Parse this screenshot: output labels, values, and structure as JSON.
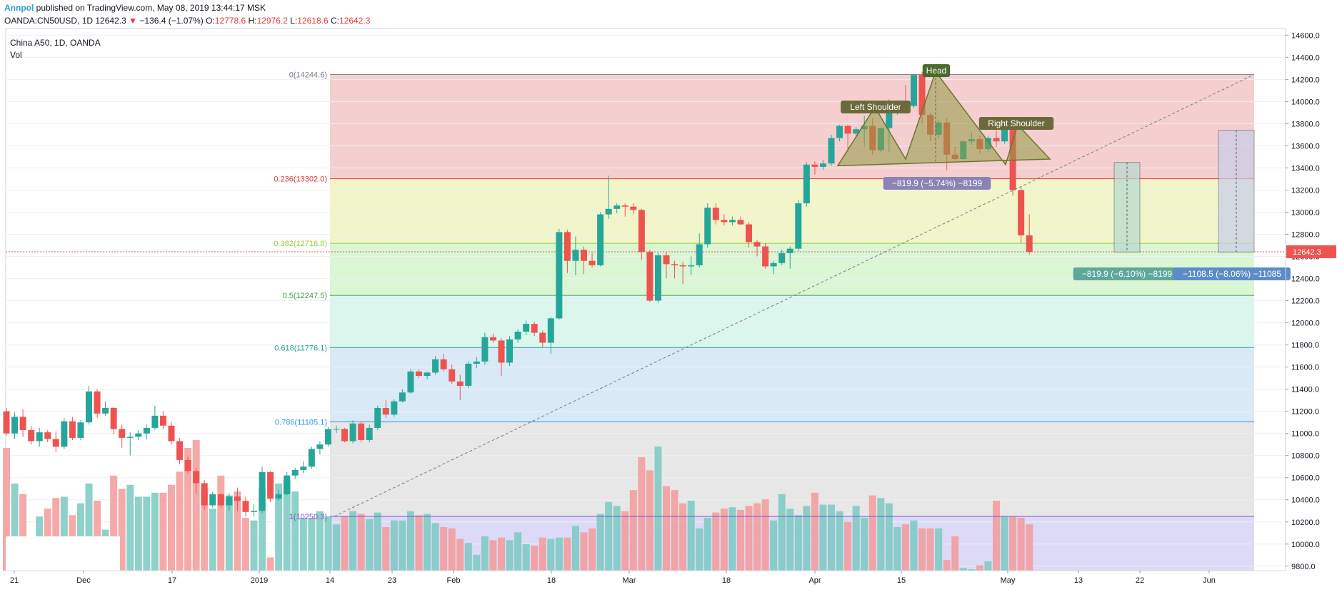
{
  "header": {
    "author": "Annpol",
    "published_text": "published on TradingView.com, May 08, 2019 13:44:17 MSK",
    "symbol": "OANDA:CN50USD, 1D",
    "last": "12642.3",
    "change_arrow": "▼",
    "change": "−136.4 (−1.07%)",
    "o_label": "O:",
    "o_value": "12778.6",
    "h_label": "H:",
    "h_value": "12976.2",
    "l_label": "L:",
    "l_value": "12618.6",
    "c_label": "C:",
    "c_value": "12642.3"
  },
  "legend": {
    "title": "China A50, 1D, OANDA",
    "volume": "Vol"
  },
  "colors": {
    "up": "#26a69a",
    "down": "#ef5350",
    "text": "#131722"
  },
  "chart_data": {
    "type": "candlestick",
    "x_tick_labels": [
      "21",
      "Dec",
      "17",
      "2019",
      "14",
      "23",
      "Feb",
      "18",
      "Mar",
      "18",
      "Apr",
      "15",
      "May",
      "13",
      "22",
      "Jun"
    ],
    "y_ticks": [
      "14600.0",
      "14400.0",
      "14200.0",
      "14000.0",
      "13800.0",
      "13600.0",
      "13400.0",
      "13200.0",
      "13000.0",
      "12800.0",
      "12600.0",
      "12400.0",
      "12200.0",
      "12000.0",
      "11800.0",
      "11600.0",
      "11400.0",
      "11200.0",
      "11000.0",
      "10800.0",
      "10600.0",
      "10400.0",
      "10200.0",
      "10000.0",
      "9800.0"
    ],
    "ylim": [
      9760,
      14660
    ],
    "last_price": "12642.3",
    "fib_levels": [
      {
        "label": "0(14244.6)",
        "ratio": 0,
        "price": 14244.6,
        "color": "#787b86",
        "fill": "#f3c7c7"
      },
      {
        "label": "0.236(13302.0)",
        "ratio": 0.236,
        "price": 13302.0,
        "color": "#e53935",
        "fill": "#eef3c0"
      },
      {
        "label": "0.382(12718.8)",
        "ratio": 0.382,
        "price": 12718.8,
        "color": "#9acd32",
        "fill": "#d4f4cc"
      },
      {
        "label": "0.5(12247.5)",
        "ratio": 0.5,
        "price": 12247.5,
        "color": "#43a047",
        "fill": "#d3f4ea"
      },
      {
        "label": "0.618(11776.1)",
        "ratio": 0.618,
        "price": 11776.1,
        "color": "#26a69a",
        "fill": "#d2e6f4"
      },
      {
        "label": "0.786(11105.1)",
        "ratio": 0.786,
        "price": 11105.1,
        "color": "#2196f3",
        "fill": "#e3e3e3"
      },
      {
        "label": "1(10250.3)",
        "ratio": 1,
        "price": 10250.3,
        "color": "#7e57c2",
        "fill": "#d6d4f4"
      }
    ],
    "pattern_labels": {
      "head": "Head",
      "left_shoulder": "Left Shoulder",
      "right_shoulder": "Right Shoulder"
    },
    "measure_labels": {
      "neck_drop": "−819.9 (−5.74%) −8199",
      "target_1": "−819.9 (−6.10%) −8199",
      "target_2": "−1108.5 (−8.06%) −11085"
    },
    "candles": [
      {
        "o": 11200,
        "h": 11230,
        "l": 10980,
        "c": 11000
      },
      {
        "o": 11000,
        "h": 11190,
        "l": 10950,
        "c": 11150
      },
      {
        "o": 11150,
        "h": 11220,
        "l": 10970,
        "c": 11030
      },
      {
        "o": 11030,
        "h": 11070,
        "l": 10900,
        "c": 10930
      },
      {
        "o": 10930,
        "h": 11050,
        "l": 10880,
        "c": 11010
      },
      {
        "o": 11010,
        "h": 11030,
        "l": 10920,
        "c": 10950
      },
      {
        "o": 10950,
        "h": 11020,
        "l": 10830,
        "c": 10880
      },
      {
        "o": 10880,
        "h": 11140,
        "l": 10860,
        "c": 11110
      },
      {
        "o": 11110,
        "h": 11150,
        "l": 10940,
        "c": 10960
      },
      {
        "o": 10960,
        "h": 11120,
        "l": 10940,
        "c": 11100
      },
      {
        "o": 11100,
        "h": 11430,
        "l": 11080,
        "c": 11380
      },
      {
        "o": 11380,
        "h": 11400,
        "l": 11140,
        "c": 11180
      },
      {
        "o": 11180,
        "h": 11290,
        "l": 11160,
        "c": 11230
      },
      {
        "o": 11230,
        "h": 11240,
        "l": 10990,
        "c": 11040
      },
      {
        "o": 11040,
        "h": 11080,
        "l": 10870,
        "c": 10960
      },
      {
        "o": 10960,
        "h": 11010,
        "l": 10800,
        "c": 10970
      },
      {
        "o": 10970,
        "h": 11030,
        "l": 10940,
        "c": 11000
      },
      {
        "o": 11000,
        "h": 11080,
        "l": 10950,
        "c": 11050
      },
      {
        "o": 11050,
        "h": 11250,
        "l": 11030,
        "c": 11160
      },
      {
        "o": 11160,
        "h": 11200,
        "l": 11040,
        "c": 11070
      },
      {
        "o": 11070,
        "h": 11100,
        "l": 10900,
        "c": 10930
      },
      {
        "o": 10930,
        "h": 10960,
        "l": 10720,
        "c": 10760
      },
      {
        "o": 10760,
        "h": 10790,
        "l": 10640,
        "c": 10660
      },
      {
        "o": 10660,
        "h": 10690,
        "l": 10450,
        "c": 10550
      },
      {
        "o": 10550,
        "h": 10580,
        "l": 10310,
        "c": 10350
      },
      {
        "o": 10350,
        "h": 10470,
        "l": 10330,
        "c": 10450
      },
      {
        "o": 10450,
        "h": 10460,
        "l": 10330,
        "c": 10350
      },
      {
        "o": 10350,
        "h": 10460,
        "l": 10300,
        "c": 10430
      },
      {
        "o": 10430,
        "h": 10510,
        "l": 10300,
        "c": 10390
      },
      {
        "o": 10390,
        "h": 10430,
        "l": 10250,
        "c": 10290
      },
      {
        "o": 10290,
        "h": 10360,
        "l": 10250,
        "c": 10300
      },
      {
        "o": 10300,
        "h": 10700,
        "l": 10280,
        "c": 10650
      },
      {
        "o": 10650,
        "h": 10660,
        "l": 10380,
        "c": 10410
      },
      {
        "o": 10410,
        "h": 10490,
        "l": 10390,
        "c": 10450
      },
      {
        "o": 10450,
        "h": 10650,
        "l": 10440,
        "c": 10620
      },
      {
        "o": 10620,
        "h": 10690,
        "l": 10590,
        "c": 10670
      },
      {
        "o": 10670,
        "h": 10750,
        "l": 10640,
        "c": 10700
      },
      {
        "o": 10700,
        "h": 10880,
        "l": 10680,
        "c": 10860
      },
      {
        "o": 10860,
        "h": 10930,
        "l": 10810,
        "c": 10900
      },
      {
        "o": 10900,
        "h": 11060,
        "l": 10880,
        "c": 11040
      },
      {
        "o": 11040,
        "h": 11070,
        "l": 11000,
        "c": 11040
      },
      {
        "o": 11040,
        "h": 11050,
        "l": 10920,
        "c": 10930
      },
      {
        "o": 10930,
        "h": 11120,
        "l": 10910,
        "c": 11090
      },
      {
        "o": 11090,
        "h": 11110,
        "l": 10920,
        "c": 10940
      },
      {
        "o": 10940,
        "h": 11080,
        "l": 10920,
        "c": 11050
      },
      {
        "o": 11050,
        "h": 11250,
        "l": 11030,
        "c": 11230
      },
      {
        "o": 11230,
        "h": 11300,
        "l": 11140,
        "c": 11170
      },
      {
        "o": 11170,
        "h": 11310,
        "l": 11150,
        "c": 11290
      },
      {
        "o": 11290,
        "h": 11400,
        "l": 11280,
        "c": 11370
      },
      {
        "o": 11370,
        "h": 11580,
        "l": 11360,
        "c": 11560
      },
      {
        "o": 11560,
        "h": 11580,
        "l": 11500,
        "c": 11520
      },
      {
        "o": 11520,
        "h": 11560,
        "l": 11490,
        "c": 11550
      },
      {
        "o": 11550,
        "h": 11700,
        "l": 11530,
        "c": 11670
      },
      {
        "o": 11670,
        "h": 11720,
        "l": 11560,
        "c": 11580
      },
      {
        "o": 11580,
        "h": 11620,
        "l": 11450,
        "c": 11470
      },
      {
        "o": 11470,
        "h": 11530,
        "l": 11300,
        "c": 11430
      },
      {
        "o": 11430,
        "h": 11650,
        "l": 11410,
        "c": 11630
      },
      {
        "o": 11630,
        "h": 11690,
        "l": 11590,
        "c": 11650
      },
      {
        "o": 11650,
        "h": 11910,
        "l": 11620,
        "c": 11870
      },
      {
        "o": 11870,
        "h": 11900,
        "l": 11820,
        "c": 11840
      },
      {
        "o": 11840,
        "h": 11860,
        "l": 11520,
        "c": 11640
      },
      {
        "o": 11640,
        "h": 11880,
        "l": 11610,
        "c": 11850
      },
      {
        "o": 11850,
        "h": 11940,
        "l": 11820,
        "c": 11920
      },
      {
        "o": 11920,
        "h": 12020,
        "l": 11890,
        "c": 11990
      },
      {
        "o": 11990,
        "h": 12010,
        "l": 11880,
        "c": 11910
      },
      {
        "o": 11910,
        "h": 11930,
        "l": 11780,
        "c": 11820
      },
      {
        "o": 11820,
        "h": 12050,
        "l": 11720,
        "c": 12040
      },
      {
        "o": 12040,
        "h": 12850,
        "l": 12030,
        "c": 12820
      },
      {
        "o": 12820,
        "h": 12840,
        "l": 12450,
        "c": 12560
      },
      {
        "o": 12560,
        "h": 12780,
        "l": 12430,
        "c": 12660
      },
      {
        "o": 12660,
        "h": 12690,
        "l": 12440,
        "c": 12560
      },
      {
        "o": 12560,
        "h": 12630,
        "l": 12500,
        "c": 12520
      },
      {
        "o": 12520,
        "h": 13000,
        "l": 12510,
        "c": 12980
      },
      {
        "o": 12980,
        "h": 13330,
        "l": 12940,
        "c": 13030
      },
      {
        "o": 13030,
        "h": 13080,
        "l": 12990,
        "c": 13060
      },
      {
        "o": 13060,
        "h": 13080,
        "l": 12960,
        "c": 13050
      },
      {
        "o": 13050,
        "h": 13080,
        "l": 12980,
        "c": 13020
      },
      {
        "o": 13020,
        "h": 13030,
        "l": 12570,
        "c": 12640
      },
      {
        "o": 12640,
        "h": 12660,
        "l": 12190,
        "c": 12200
      },
      {
        "o": 12200,
        "h": 12630,
        "l": 12180,
        "c": 12610
      },
      {
        "o": 12610,
        "h": 12640,
        "l": 12400,
        "c": 12530
      },
      {
        "o": 12530,
        "h": 12560,
        "l": 12400,
        "c": 12520
      },
      {
        "o": 12520,
        "h": 12550,
        "l": 12350,
        "c": 12510
      },
      {
        "o": 12510,
        "h": 12600,
        "l": 12430,
        "c": 12520
      },
      {
        "o": 12520,
        "h": 12810,
        "l": 12500,
        "c": 12710
      },
      {
        "o": 12710,
        "h": 13080,
        "l": 12680,
        "c": 13040
      },
      {
        "o": 13040,
        "h": 13080,
        "l": 12890,
        "c": 12930
      },
      {
        "o": 12930,
        "h": 12980,
        "l": 12880,
        "c": 12910
      },
      {
        "o": 12910,
        "h": 12960,
        "l": 12880,
        "c": 12930
      },
      {
        "o": 12930,
        "h": 12960,
        "l": 12880,
        "c": 12890
      },
      {
        "o": 12890,
        "h": 12910,
        "l": 12680,
        "c": 12730
      },
      {
        "o": 12730,
        "h": 12750,
        "l": 12600,
        "c": 12690
      },
      {
        "o": 12690,
        "h": 12720,
        "l": 12490,
        "c": 12510
      },
      {
        "o": 12510,
        "h": 12560,
        "l": 12440,
        "c": 12540
      },
      {
        "o": 12540,
        "h": 12660,
        "l": 12520,
        "c": 12630
      },
      {
        "o": 12630,
        "h": 12690,
        "l": 12490,
        "c": 12670
      },
      {
        "o": 12670,
        "h": 13110,
        "l": 12650,
        "c": 13080
      },
      {
        "o": 13080,
        "h": 13450,
        "l": 13050,
        "c": 13430
      },
      {
        "o": 13430,
        "h": 13460,
        "l": 13340,
        "c": 13410
      },
      {
        "o": 13410,
        "h": 13470,
        "l": 13380,
        "c": 13440
      },
      {
        "o": 13440,
        "h": 13700,
        "l": 13420,
        "c": 13670
      },
      {
        "o": 13670,
        "h": 13790,
        "l": 13640,
        "c": 13780
      },
      {
        "o": 13780,
        "h": 13790,
        "l": 13560,
        "c": 13710
      },
      {
        "o": 13710,
        "h": 13770,
        "l": 13680,
        "c": 13750
      },
      {
        "o": 13750,
        "h": 13870,
        "l": 13590,
        "c": 13780
      },
      {
        "o": 13780,
        "h": 13850,
        "l": 13520,
        "c": 13560
      },
      {
        "o": 13560,
        "h": 13760,
        "l": 13540,
        "c": 13760
      },
      {
        "o": 13760,
        "h": 14020,
        "l": 13540,
        "c": 13970
      },
      {
        "o": 13970,
        "h": 14010,
        "l": 13880,
        "c": 13990
      },
      {
        "o": 13990,
        "h": 14150,
        "l": 13930,
        "c": 13960
      },
      {
        "o": 13960,
        "h": 14250,
        "l": 13940,
        "c": 14240
      },
      {
        "o": 14240,
        "h": 14270,
        "l": 13800,
        "c": 13880
      },
      {
        "o": 13880,
        "h": 13900,
        "l": 13640,
        "c": 13700
      },
      {
        "o": 13700,
        "h": 13840,
        "l": 13670,
        "c": 13810
      },
      {
        "o": 13810,
        "h": 13850,
        "l": 13380,
        "c": 13520
      },
      {
        "o": 13520,
        "h": 13590,
        "l": 13470,
        "c": 13480
      },
      {
        "o": 13480,
        "h": 13650,
        "l": 13470,
        "c": 13640
      },
      {
        "o": 13640,
        "h": 13720,
        "l": 13610,
        "c": 13660
      },
      {
        "o": 13660,
        "h": 13690,
        "l": 13530,
        "c": 13570
      },
      {
        "o": 13570,
        "h": 13690,
        "l": 13540,
        "c": 13670
      },
      {
        "o": 13670,
        "h": 13740,
        "l": 13590,
        "c": 13640
      },
      {
        "o": 13640,
        "h": 13810,
        "l": 13620,
        "c": 13760
      },
      {
        "o": 13760,
        "h": 13780,
        "l": 13150,
        "c": 13200
      },
      {
        "o": 13200,
        "h": 13230,
        "l": 12720,
        "c": 12790
      },
      {
        "o": 12790,
        "h": 12980,
        "l": 12620,
        "c": 12640
      }
    ],
    "volume_level": [
      0.93,
      0.66,
      0.58,
      0.2,
      0.41,
      0.47,
      0.55,
      0.56,
      0.42,
      0.51,
      0.66,
      0.53,
      0.31,
      0.72,
      0.62,
      0.65,
      0.56,
      0.56,
      0.59,
      0.59,
      0.65,
      0.75,
      0.93,
      0.99,
      0.62,
      0.47,
      0.72,
      0.57,
      0.6,
      0.4,
      0.38,
      0.62,
      0.1,
      0.66,
      0.69,
      0.6,
      0.4,
      0.4,
      0.45,
      0.41,
      0.35,
      0.41,
      0.45,
      0.43,
      0.39,
      0.44,
      0.33,
      0.38,
      0.38,
      0.45,
      0.42,
      0.43,
      0.36,
      0.33,
      0.32,
      0.24,
      0.21,
      0.12,
      0.26,
      0.23,
      0.25,
      0.23,
      0.29,
      0.2,
      0.19,
      0.25,
      0.24,
      0.25,
      0.25,
      0.34,
      0.29,
      0.32,
      0.43,
      0.52,
      0.49,
      0.45,
      0.61,
      0.86,
      0.76,
      0.94,
      0.64,
      0.61,
      0.51,
      0.53,
      0.32,
      0.4,
      0.44,
      0.47,
      0.48,
      0.46,
      0.49,
      0.51,
      0.54,
      0.38,
      0.58,
      0.47,
      0.42,
      0.49,
      0.59,
      0.5,
      0.5,
      0.45,
      0.37,
      0.49,
      0.4,
      0.57,
      0.55,
      0.51,
      0.33,
      0.35,
      0.38,
      0.32,
      0.32,
      0.32,
      0.08,
      0.26,
      0.02,
      0.01,
      0.04,
      0.07,
      0.53,
      0.41,
      0.41,
      0.4,
      0.35
    ],
    "volume_max_label": ""
  }
}
